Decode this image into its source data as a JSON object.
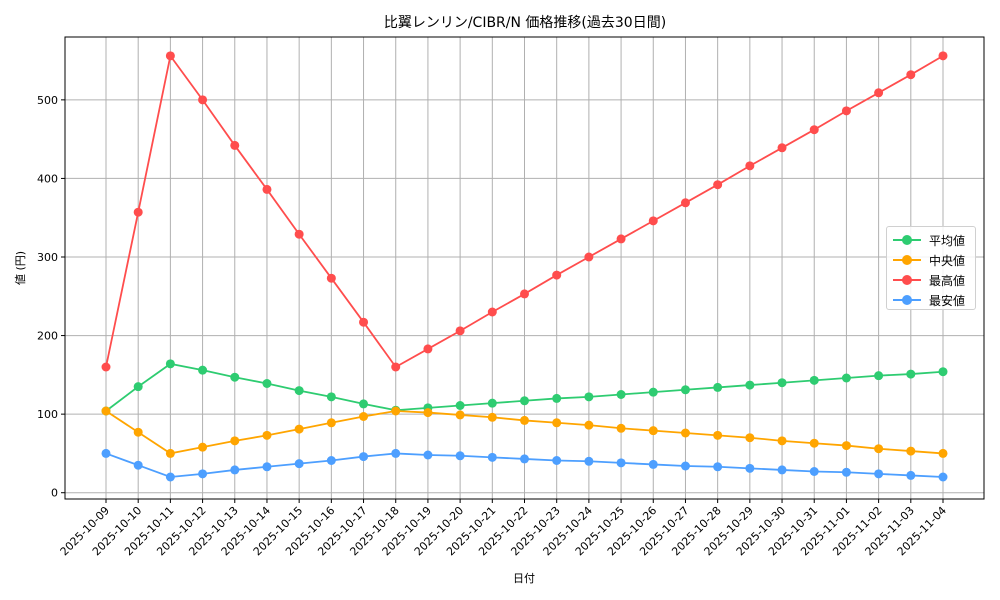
{
  "chart_data": {
    "type": "line",
    "title": "比翼レンリン/CIBR/N 価格推移(過去30日間)",
    "xlabel": "日付",
    "ylabel": "値 (円)",
    "ylim": [
      -8,
      580
    ],
    "yticks": [
      0,
      100,
      200,
      300,
      400,
      500
    ],
    "grid": true,
    "legend_position": "center right",
    "x": [
      "2025-10-09",
      "2025-10-10",
      "2025-10-11",
      "2025-10-12",
      "2025-10-13",
      "2025-10-14",
      "2025-10-15",
      "2025-10-16",
      "2025-10-17",
      "2025-10-18",
      "2025-10-19",
      "2025-10-20",
      "2025-10-21",
      "2025-10-22",
      "2025-10-23",
      "2025-10-24",
      "2025-10-25",
      "2025-10-26",
      "2025-10-27",
      "2025-10-28",
      "2025-10-29",
      "2025-10-30",
      "2025-10-31",
      "2025-11-01",
      "2025-11-02",
      "2025-11-03",
      "2025-11-04"
    ],
    "series": [
      {
        "name": "平均値",
        "color": "#2ecc71",
        "values": [
          104,
          135,
          164,
          156,
          147,
          139,
          130,
          122,
          113,
          105,
          108,
          111,
          114,
          117,
          120,
          122,
          125,
          128,
          131,
          134,
          137,
          140,
          143,
          146,
          149,
          151,
          154
        ]
      },
      {
        "name": "中央値",
        "color": "#ffa500",
        "values": [
          104,
          77,
          50,
          58,
          66,
          73,
          81,
          89,
          97,
          104,
          102,
          99,
          96,
          92,
          89,
          86,
          82,
          79,
          76,
          73,
          70,
          66,
          63,
          60,
          56,
          53,
          50
        ]
      },
      {
        "name": "最高値",
        "color": "#ff4d4d",
        "values": [
          160,
          357,
          556,
          500,
          442,
          386,
          329,
          273,
          217,
          160,
          183,
          206,
          230,
          253,
          277,
          300,
          323,
          346,
          369,
          392,
          416,
          439,
          462,
          486,
          509,
          532,
          556
        ]
      },
      {
        "name": "最安値",
        "color": "#4d9fff",
        "values": [
          50,
          35,
          20,
          24,
          29,
          33,
          37,
          41,
          46,
          50,
          48,
          47,
          45,
          43,
          41,
          40,
          38,
          36,
          34,
          33,
          31,
          29,
          27,
          26,
          24,
          22,
          20
        ]
      }
    ]
  },
  "colors": {
    "grid": "#b0b0b0",
    "axis": "#000000"
  }
}
